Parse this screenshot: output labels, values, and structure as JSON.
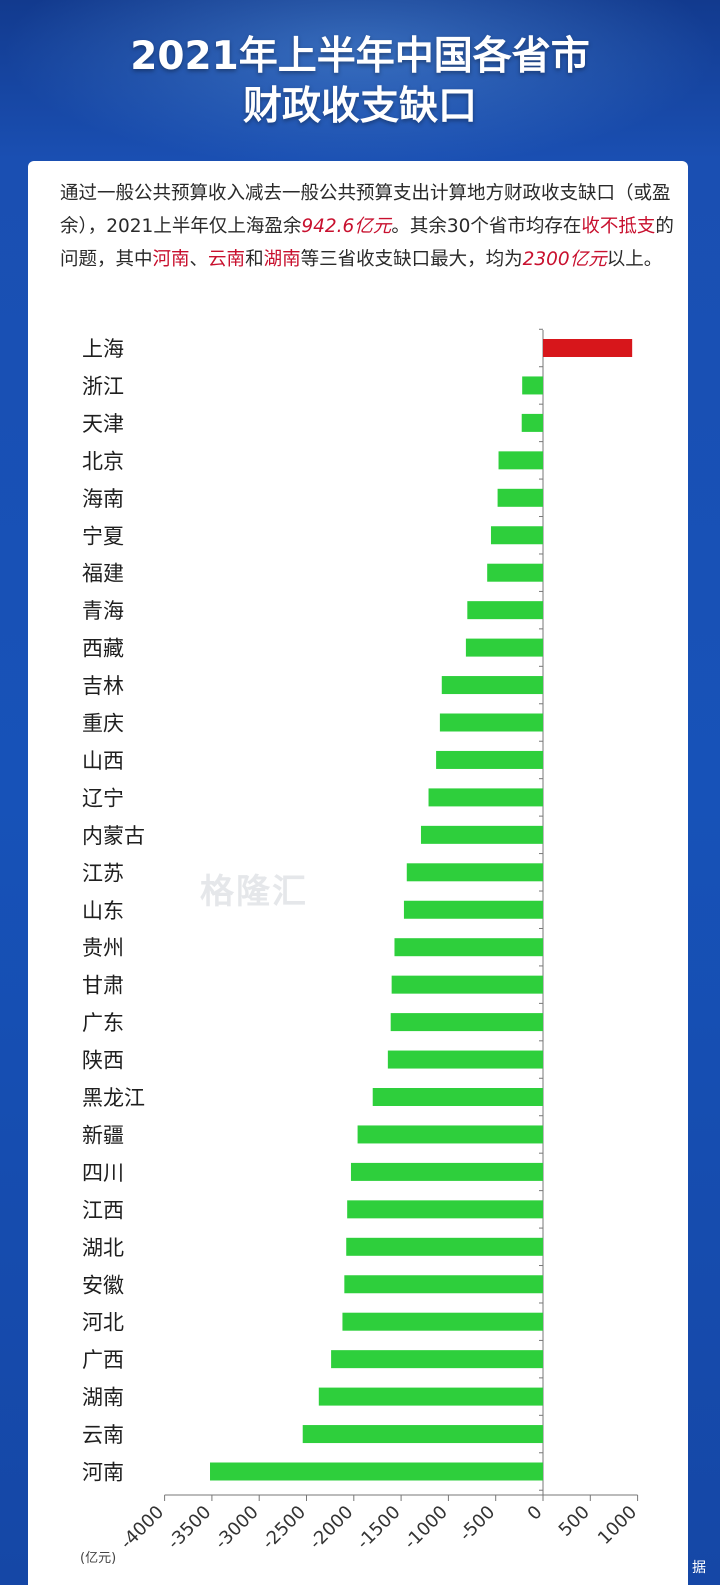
{
  "title_lines": [
    "2021年上半年中国各省市",
    "财政收支缺口"
  ],
  "description": {
    "p1": "通过一般公共预算收入减去一般公共预算支出计算地方财政收支缺口（或盈余），2021上半年仅上海盈余",
    "h1": "942.6亿元",
    "p2": "。其余30个省市均存在",
    "h2": "收不抵支",
    "p3": "的问题，其中",
    "h3": "河南",
    "p4": "、",
    "h4": "云南",
    "p5": "和",
    "h5": "湖南",
    "p6": "等三省收支缺口最大，均为",
    "h6": "2300亿元",
    "p7": "以上。"
  },
  "watermark": "格隆汇",
  "corner_text": "据",
  "colors": {
    "positive": "#d7161b",
    "negative": "#2ecf3c",
    "highlight": "#c8102e"
  },
  "chart_data": {
    "type": "bar",
    "orientation": "horizontal",
    "unit": "(亿元)",
    "categories": [
      "上海",
      "浙江",
      "天津",
      "北京",
      "海南",
      "宁夏",
      "福建",
      "青海",
      "西藏",
      "吉林",
      "重庆",
      "山西",
      "辽宁",
      "内蒙古",
      "江苏",
      "山东",
      "贵州",
      "甘肃",
      "广东",
      "陕西",
      "黑龙江",
      "新疆",
      "四川",
      "江西",
      "湖北",
      "安徽",
      "河北",
      "广西",
      "湖南",
      "云南",
      "河南"
    ],
    "values": [
      942.6,
      -220,
      -225,
      -470,
      -480,
      -550,
      -590,
      -800,
      -815,
      -1070,
      -1090,
      -1130,
      -1210,
      -1290,
      -1440,
      -1470,
      -1570,
      -1600,
      -1610,
      -1640,
      -1800,
      -1960,
      -2030,
      -2070,
      -2080,
      -2100,
      -2120,
      -2240,
      -2370,
      -2540,
      -3520
    ],
    "xlim": [
      -4000,
      1000
    ],
    "xticks": [
      -4000,
      -3500,
      -3000,
      -2500,
      -2000,
      -1500,
      -1000,
      -500,
      0,
      500,
      1000
    ],
    "xtick_labels": [
      "-4000",
      "-3500",
      "-3000",
      "-2500",
      "-2000",
      "-1500",
      "-1000",
      "-500",
      "0",
      "500",
      "1000"
    ]
  }
}
